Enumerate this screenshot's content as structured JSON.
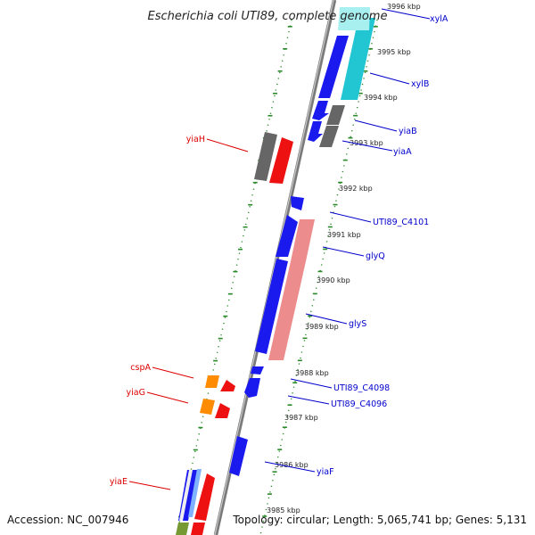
{
  "title": "Escherichia coli UTI89, complete genome",
  "footer": {
    "accession": "Accession: NC_007946",
    "summary": "Topology: circular; Length: 5,065,741 bp; Genes: 5,131"
  },
  "colors": {
    "background": "#ffffff",
    "backbone": "#8c8c8c",
    "tick": "#228b22",
    "forward_label": "#0000cc",
    "reverse_label": "#dd0000",
    "cds_blue": "#1a1aee",
    "cds_cyan": "#22c6d2",
    "cds_pink": "#ec8c8c",
    "cds_gray": "#666666",
    "cds_red": "#ee1111",
    "cds_orange": "#ff8c00",
    "cds_olive": "#779933",
    "cds_lightblue": "#7fb2ff"
  },
  "kbp_ticks": [
    "3996 kbp",
    "3995 kbp",
    "3994 kbp",
    "3993 kbp",
    "3992 kbp",
    "3991 kbp",
    "3990 kbp",
    "3989 kbp",
    "3988 kbp",
    "3987 kbp",
    "3986 kbp",
    "3985 kbp"
  ],
  "forward_labels": [
    "xylA",
    "xylB",
    "yiaB",
    "yiaA",
    "UTI89_C4101",
    "glyQ",
    "glyS",
    "UTI89_C4098",
    "UTI89_C4096",
    "yiaF"
  ],
  "reverse_labels": [
    "yiaH",
    "cspA",
    "yiaG",
    "yiaE"
  ]
}
